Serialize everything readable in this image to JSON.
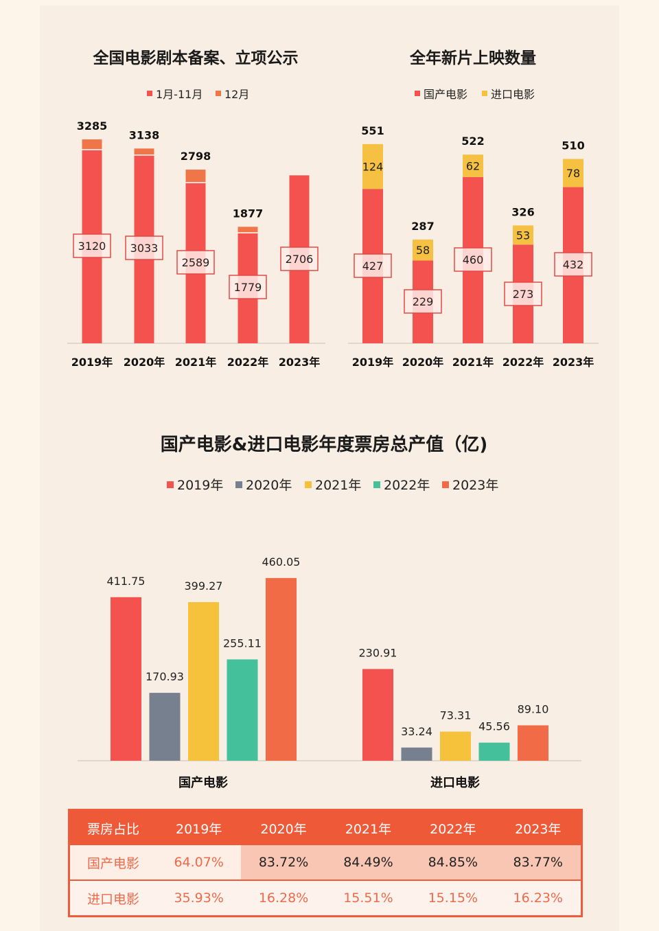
{
  "chart_data": [
    {
      "type": "bar",
      "title": "全国电影剧本备案、立项公示",
      "stacked": true,
      "categories": [
        "2019年",
        "2020年",
        "2021年",
        "2022年",
        "2023年"
      ],
      "series": [
        {
          "name": "1月-11月",
          "values": [
            3120,
            3033,
            2589,
            1779,
            2706
          ],
          "color": "#f4524f"
        },
        {
          "name": "12月",
          "values": [
            165,
            105,
            209,
            98,
            0
          ],
          "color": "#f07649"
        }
      ],
      "totals": [
        "3285",
        "3138",
        "2798",
        "1877",
        ""
      ]
    },
    {
      "type": "bar",
      "title": "全年新片上映数量",
      "stacked": true,
      "categories": [
        "2019年",
        "2020年",
        "2021年",
        "2022年",
        "2023年"
      ],
      "series": [
        {
          "name": "国产电影",
          "values": [
            427,
            229,
            460,
            273,
            432
          ],
          "color": "#f4524f"
        },
        {
          "name": "进口电影",
          "values": [
            124,
            58,
            62,
            53,
            78
          ],
          "color": "#f6c142"
        }
      ],
      "totals": [
        "551",
        "287",
        "522",
        "326",
        "510"
      ]
    },
    {
      "type": "bar",
      "title": "国产电影&进口电影年度票房总产值（亿)",
      "categories": [
        "国产电影",
        "进口电影"
      ],
      "series": [
        {
          "name": "2019年",
          "values": [
            411.75,
            230.91
          ],
          "labels": [
            "411.75",
            "230.91"
          ],
          "color": "#f4524f"
        },
        {
          "name": "2020年",
          "values": [
            170.93,
            33.24
          ],
          "labels": [
            "170.93",
            "33.24"
          ],
          "color": "#76808f"
        },
        {
          "name": "2021年",
          "values": [
            399.27,
            73.31
          ],
          "labels": [
            "399.27",
            "73.31"
          ],
          "color": "#f6c23b"
        },
        {
          "name": "2022年",
          "values": [
            255.11,
            45.56
          ],
          "labels": [
            "255.11",
            "45.56"
          ],
          "color": "#44c09a"
        },
        {
          "name": "2023年",
          "values": [
            460.05,
            89.1
          ],
          "labels": [
            "460.05",
            "89.10"
          ],
          "color": "#f26b47"
        }
      ]
    }
  ],
  "share_table": {
    "header": [
      "票房占比",
      "2019年",
      "2020年",
      "2021年",
      "2022年",
      "2023年"
    ],
    "rows": [
      [
        "国产电影",
        "64.07%",
        "83.72%",
        "84.49%",
        "84.85%",
        "83.77%"
      ],
      [
        "进口电影",
        "35.93%",
        "16.28%",
        "15.51%",
        "15.15%",
        "16.23%"
      ]
    ]
  }
}
